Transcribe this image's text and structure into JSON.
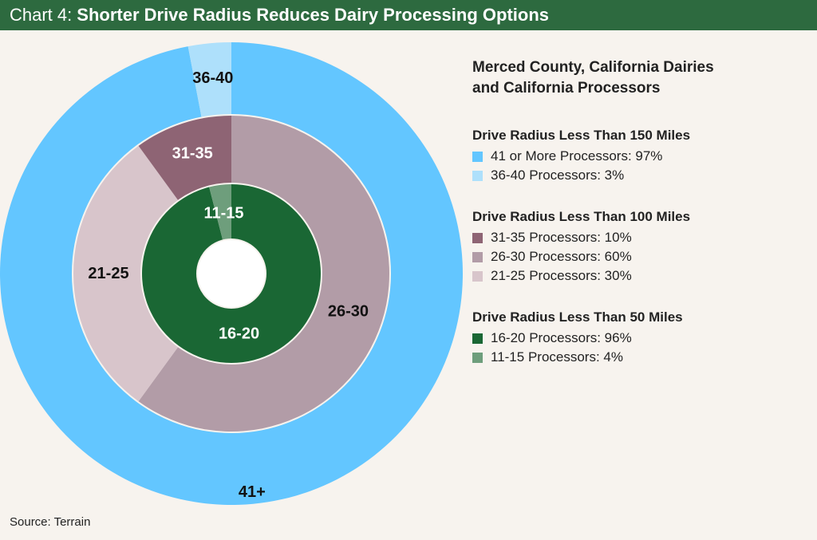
{
  "header": {
    "label": "Chart 4:",
    "title": "Shorter Drive Radius Reduces Dairy Processing Options"
  },
  "legend": {
    "title_line1": "Merced County, California Dairies",
    "title_line2": "and California Processors",
    "groups": [
      {
        "title": "Drive Radius Less Than 150 Miles",
        "items": [
          {
            "label": "41 or More Processors: 97%",
            "color": "#63c6ff"
          },
          {
            "label": "36-40 Processors: 3%",
            "color": "#aee0fb"
          }
        ]
      },
      {
        "title": "Drive Radius Less Than 100 Miles",
        "items": [
          {
            "label": "31-35 Processors: 10%",
            "color": "#8e6474"
          },
          {
            "label": "26-30 Processors: 60%",
            "color": "#b29ca7"
          },
          {
            "label": "21-25 Processors: 30%",
            "color": "#d8c5cb"
          }
        ]
      },
      {
        "title": "Drive Radius Less Than 50 Miles",
        "items": [
          {
            "label": "16-20 Processors: 96%",
            "color": "#1a6734"
          },
          {
            "label": "11-15 Processors: 4%",
            "color": "#6e9e7c"
          }
        ]
      }
    ]
  },
  "source": "Source: Terrain",
  "chart_data": {
    "type": "pie",
    "subtype": "nested-donut",
    "rings": [
      {
        "name": "Drive Radius Less Than 150 Miles",
        "position": "outer",
        "slices": [
          {
            "label": "41+",
            "value": 97,
            "color": "#63c6ff",
            "text_color": "#111111"
          },
          {
            "label": "36-40",
            "value": 3,
            "color": "#aee0fb",
            "text_color": "#111111"
          }
        ]
      },
      {
        "name": "Drive Radius Less Than 100 Miles",
        "position": "middle",
        "slices": [
          {
            "label": "26-30",
            "value": 60,
            "color": "#b29ca7",
            "text_color": "#111111"
          },
          {
            "label": "21-25",
            "value": 30,
            "color": "#d8c5cb",
            "text_color": "#111111"
          },
          {
            "label": "31-35",
            "value": 10,
            "color": "#8e6474",
            "text_color": "#ffffff"
          }
        ]
      },
      {
        "name": "Drive Radius Less Than 50 Miles",
        "position": "inner",
        "slices": [
          {
            "label": "16-20",
            "value": 96,
            "color": "#1a6734",
            "text_color": "#ffffff"
          },
          {
            "label": "11-15",
            "value": 4,
            "color": "#6e9e7c",
            "text_color": "#ffffff"
          }
        ]
      }
    ]
  }
}
